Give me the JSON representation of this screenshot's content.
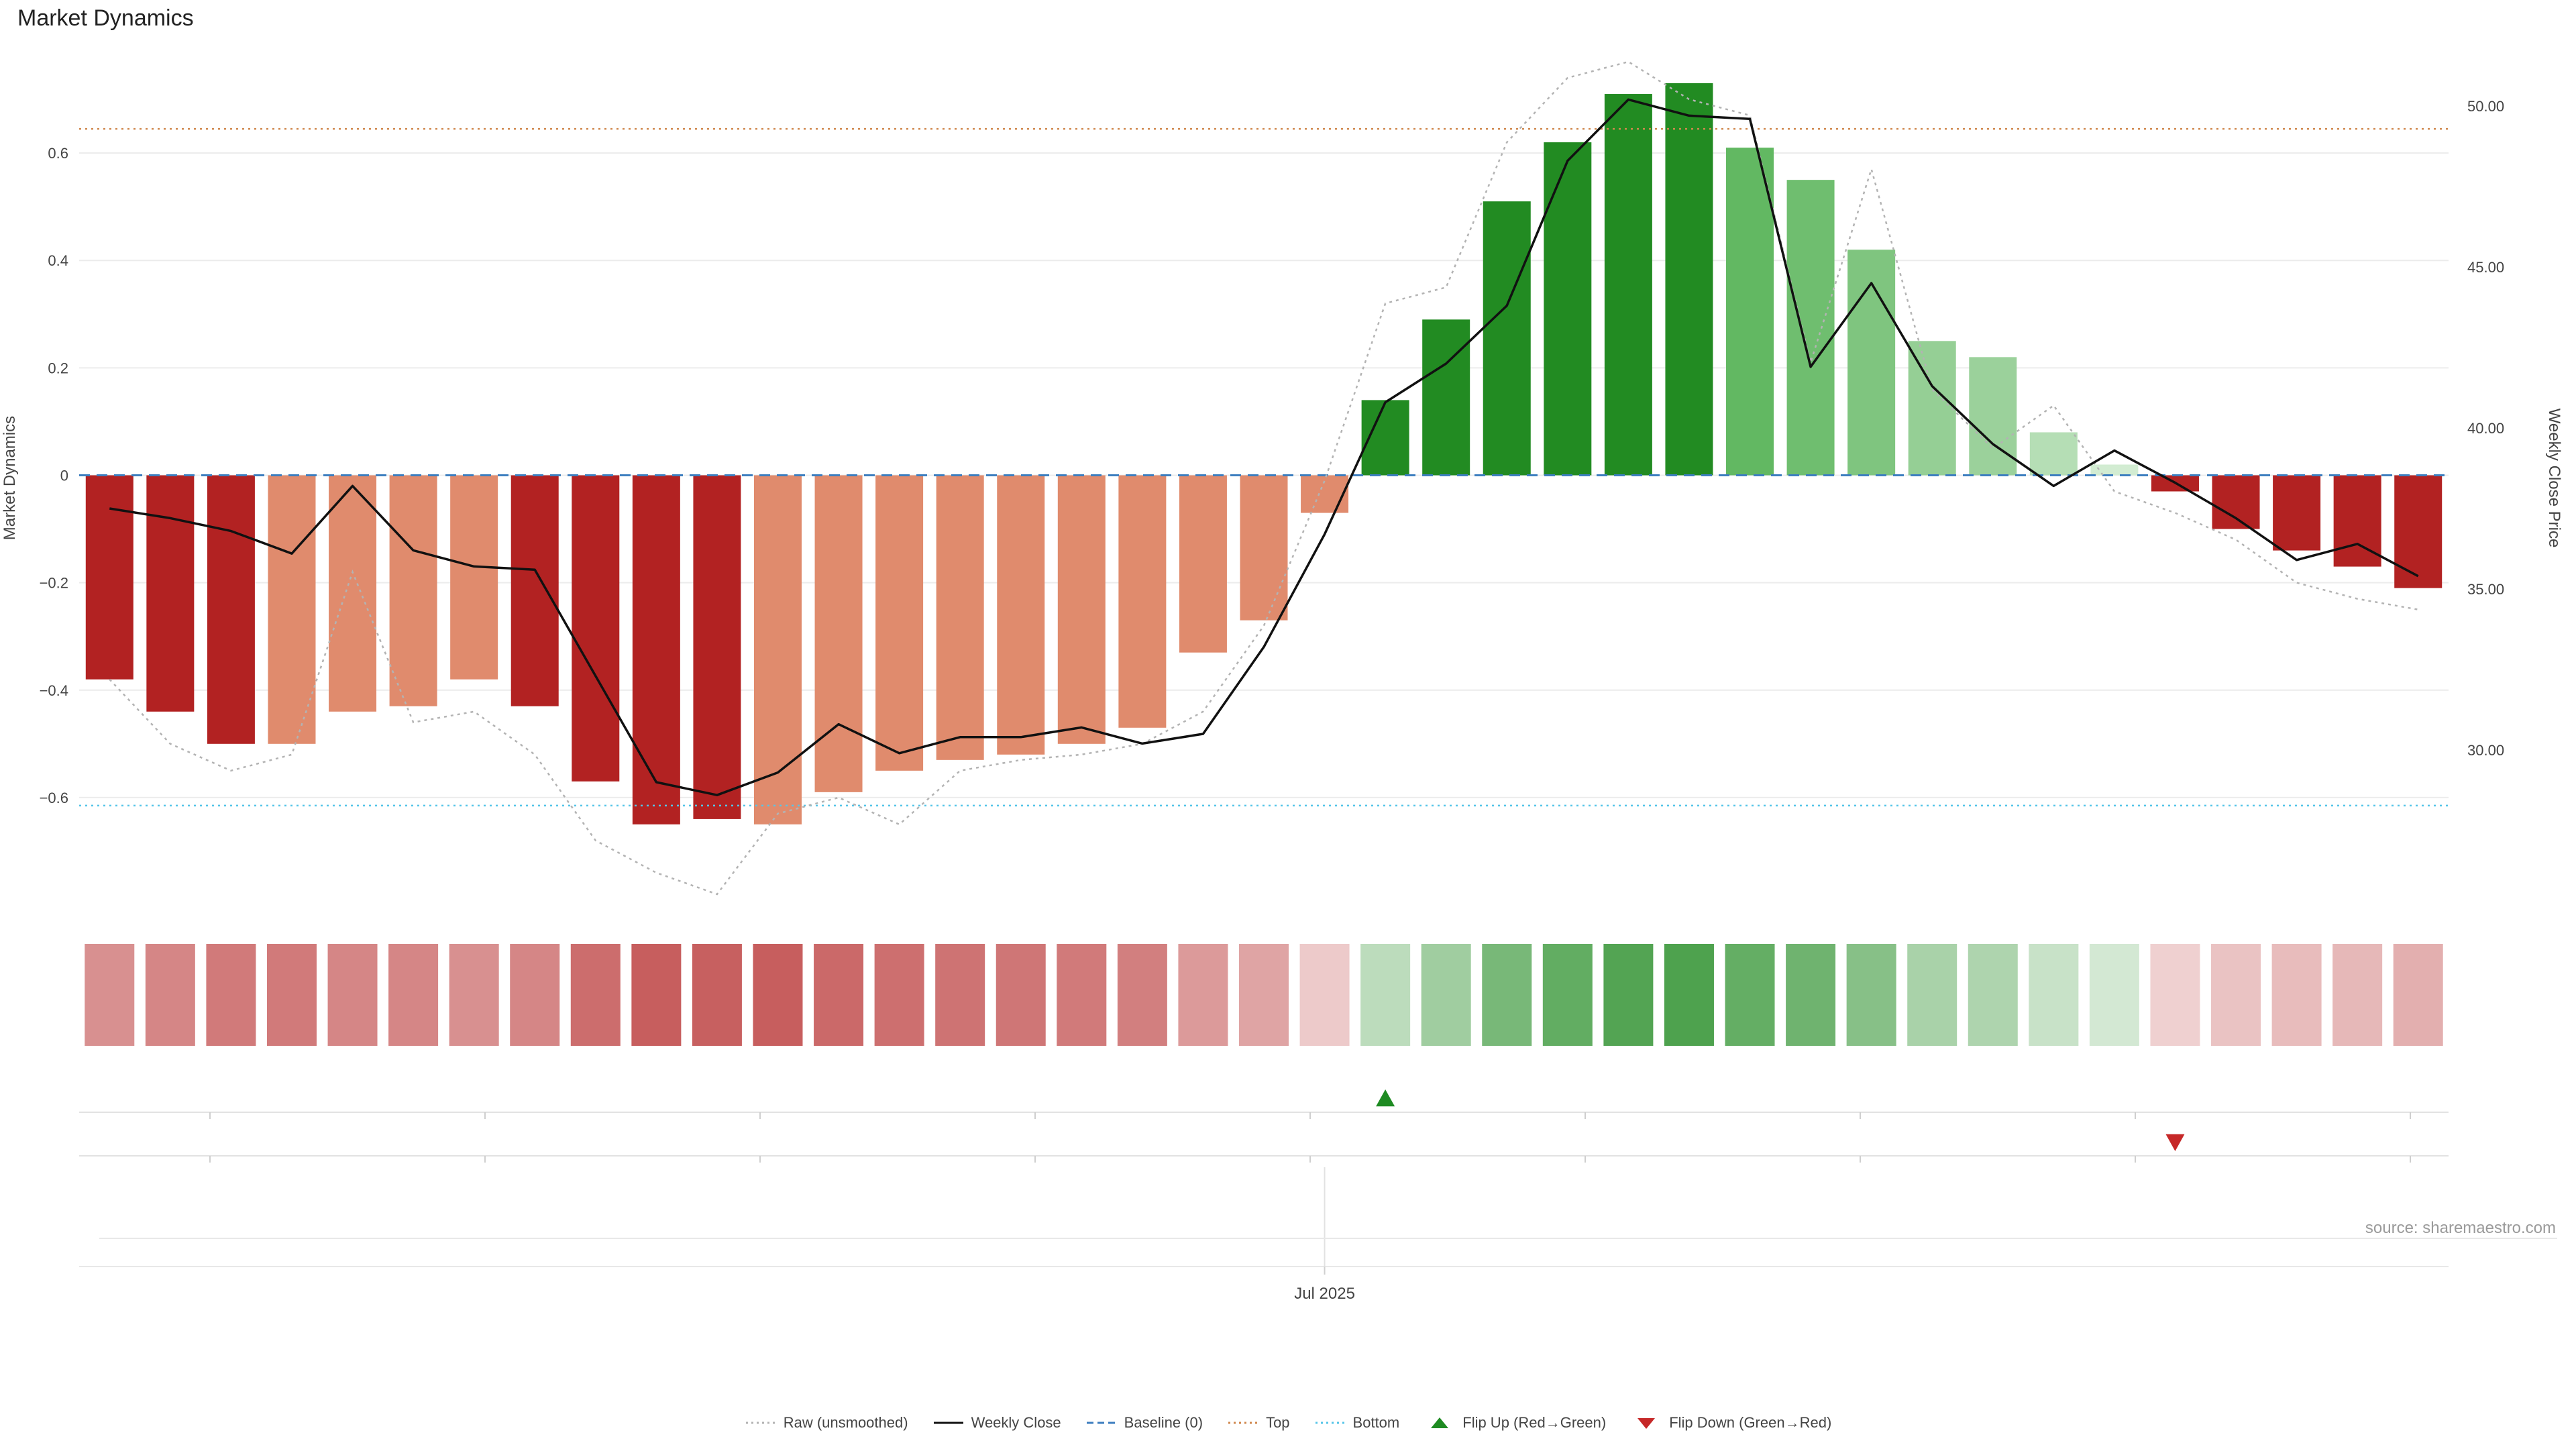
{
  "title": "Market Dynamics",
  "source": "source: sharemaestro.com",
  "colors": {
    "strong_red": "#b22222",
    "weak_red": "#e08b6d",
    "strong_green": "#228b22",
    "raw_line": "#b3b3b3",
    "close_line": "#111111",
    "baseline": "#3d7ebf",
    "top": "#d0884e",
    "bottom": "#55c5e8",
    "flip_up": "#1e8b22",
    "flip_down": "#c62828",
    "grid": "#ececec",
    "axis_line": "#e2e2e2",
    "tick_line": "#cfcfcf",
    "axis_text": "#444444",
    "source_text": "#9a9a9a"
  },
  "legend": [
    {
      "label": "Raw (unsmoothed)",
      "marker": "dotted-line",
      "color": "#b3b3b3"
    },
    {
      "label": "Weekly Close",
      "marker": "solid-line",
      "color": "#111111"
    },
    {
      "label": "Baseline (0)",
      "marker": "dashed-line",
      "color": "#3d7ebf"
    },
    {
      "label": "Top",
      "marker": "dotted-line",
      "color": "#d0884e"
    },
    {
      "label": "Bottom",
      "marker": "dotted-line",
      "color": "#55c5e8"
    },
    {
      "label": "Flip Up (Red→Green)",
      "marker": "triangle-up",
      "color": "#1e8b22"
    },
    {
      "label": "Flip Down (Green→Red)",
      "marker": "triangle-down",
      "color": "#c62828"
    }
  ],
  "chart_data": {
    "type": "bar",
    "title": "Market Dynamics",
    "bars": {
      "values": [
        -0.38,
        -0.44,
        -0.5,
        -0.5,
        -0.44,
        -0.43,
        -0.38,
        -0.43,
        -0.57,
        -0.65,
        -0.64,
        -0.65,
        -0.59,
        -0.55,
        -0.53,
        -0.52,
        -0.5,
        -0.47,
        -0.33,
        -0.27,
        -0.07,
        0.14,
        0.29,
        0.51,
        0.62,
        0.71,
        0.73,
        0.61,
        0.55,
        0.42,
        0.25,
        0.22,
        0.08,
        0.02,
        -0.03,
        -0.1,
        -0.14,
        -0.17,
        -0.21
      ],
      "colors": [
        "#b22222",
        "#b22222",
        "#b22222",
        "#e08b6d",
        "#e08b6d",
        "#e08b6d",
        "#e08b6d",
        "#b22222",
        "#b22222",
        "#b22222",
        "#b22222",
        "#e08b6d",
        "#e08b6d",
        "#e08b6d",
        "#e08b6d",
        "#e08b6d",
        "#e08b6d",
        "#e08b6d",
        "#e08b6d",
        "#e08b6d",
        "#e08b6d",
        "#228b22",
        "#228b22",
        "#228b22",
        "#228b22",
        "#228b22",
        "#228b22",
        "#62b862",
        "#6fbe6f",
        "#7fc57f",
        "#95cf95",
        "#9bd19b",
        "#b5deb5",
        "#d2ecd2",
        "#b22222",
        "#b22222",
        "#b22222",
        "#b22222",
        "#b22222"
      ]
    },
    "weekly_close": [
      37.5,
      37.2,
      36.8,
      36.1,
      38.2,
      36.2,
      35.7,
      35.6,
      32.3,
      29.0,
      28.6,
      29.3,
      30.8,
      29.9,
      30.4,
      30.4,
      30.7,
      30.2,
      30.5,
      33.2,
      36.7,
      40.8,
      42.0,
      43.8,
      48.3,
      50.2,
      49.7,
      49.6,
      41.9,
      44.5,
      41.3,
      39.5,
      38.2,
      39.3,
      38.3,
      37.2,
      35.9,
      36.4,
      35.4
    ],
    "raw_unsmoothed": [
      -0.38,
      -0.5,
      -0.55,
      -0.52,
      -0.18,
      -0.46,
      -0.44,
      -0.52,
      -0.68,
      -0.74,
      -0.78,
      -0.63,
      -0.6,
      -0.65,
      -0.55,
      -0.53,
      -0.52,
      -0.5,
      -0.44,
      -0.28,
      -0.01,
      0.32,
      0.35,
      0.62,
      0.74,
      0.77,
      0.7,
      0.67,
      0.21,
      0.57,
      0.16,
      0.05,
      0.13,
      -0.03,
      -0.07,
      -0.12,
      -0.2,
      -0.23,
      -0.25
    ],
    "baseline": 0,
    "top_threshold": 0.645,
    "bottom_threshold": -0.615,
    "flip_up_index": 21,
    "flip_down_index": 34,
    "left_axis": {
      "label": "Market Dynamics",
      "ticks": [
        0.6,
        0.4,
        0.2,
        0,
        -0.2,
        -0.4,
        -0.6
      ],
      "tick_labels": [
        "0.6",
        "0.4",
        "0.2",
        "0",
        "−0.2",
        "−0.4",
        "−0.6"
      ],
      "range": [
        -0.795,
        0.785
      ]
    },
    "right_axis": {
      "label": "Weekly Close Price",
      "ticks": [
        50,
        45,
        40,
        35,
        30
      ],
      "tick_labels": [
        "50.00",
        "45.00",
        "40.00",
        "35.00",
        "30.00"
      ],
      "range": [
        25.3,
        51.6
      ]
    },
    "x_axis": {
      "tick_label": "Jul 2025",
      "tick_index": 20
    }
  }
}
